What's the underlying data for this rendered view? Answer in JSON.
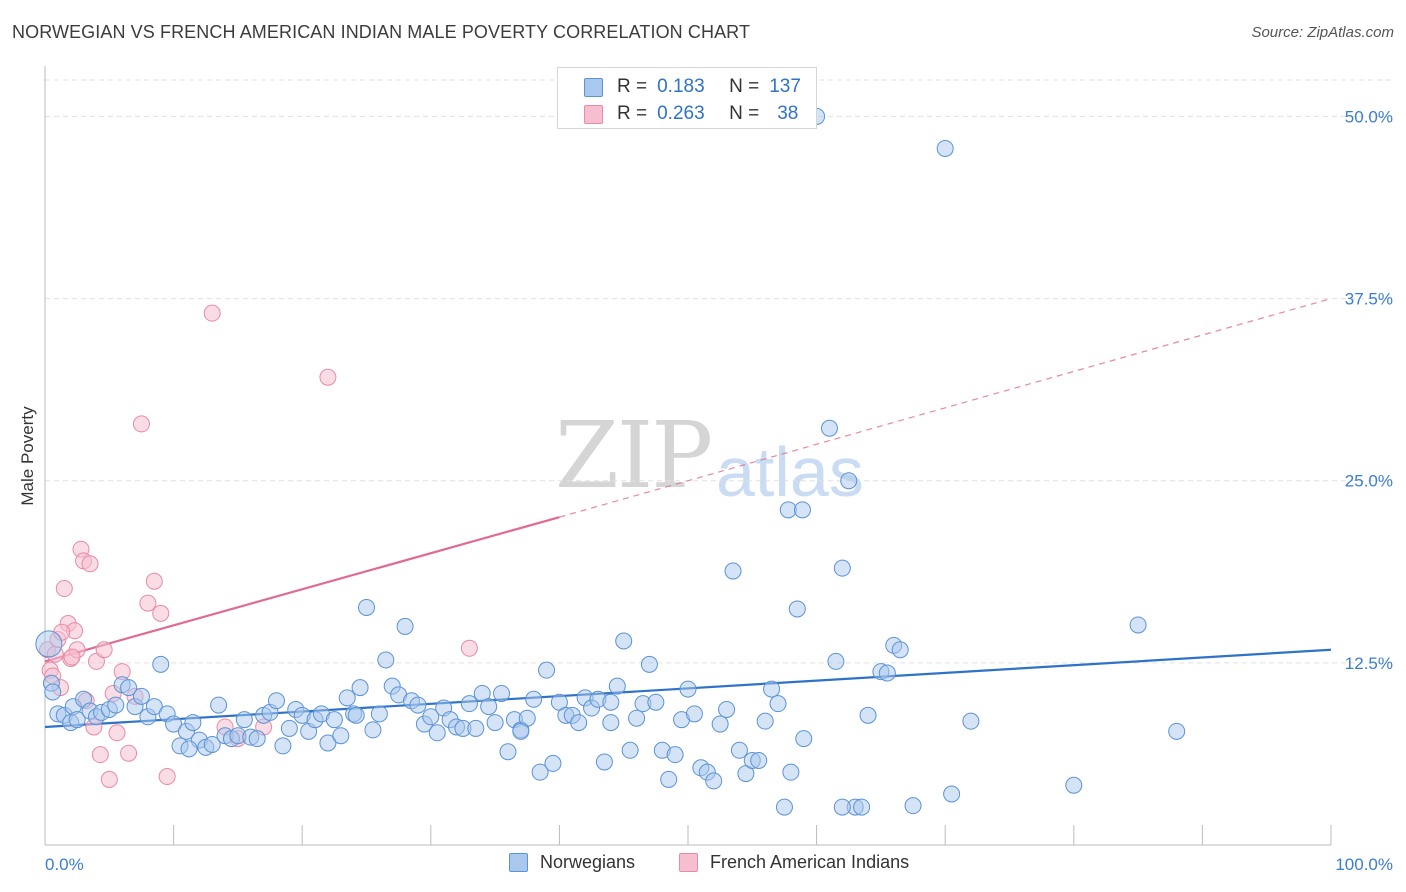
{
  "title": "NORWEGIAN VS FRENCH AMERICAN INDIAN MALE POVERTY CORRELATION CHART",
  "source": "Source: ZipAtlas.com",
  "watermark": {
    "part1": "ZIP",
    "part2": "atlas"
  },
  "legend": {
    "rows": [
      {
        "r_label": "R =",
        "r_value": "0.183",
        "n_label": "N =",
        "n_value": "137"
      },
      {
        "r_label": "R =",
        "r_value": "0.263",
        "n_label": "N =",
        "n_value": "38"
      }
    ]
  },
  "bottom_legend": {
    "series1": "Norwegians",
    "series2": "French American Indians"
  },
  "colors": {
    "blue_fill": "#a9c8ee",
    "blue_stroke": "#5b93d6",
    "blue_line": "#2f73c8",
    "pink_fill": "#f6bfd0",
    "pink_stroke": "#e88aa8",
    "pink_line": "#e06a93",
    "tick_text": "#3b7dd1",
    "grid": "#e0e0e0"
  },
  "chart_data": {
    "type": "scatter",
    "title": "NORWEGIAN VS FRENCH AMERICAN INDIAN MALE POVERTY CORRELATION CHART",
    "xlabel": "",
    "ylabel": "Male Poverty",
    "xlim": [
      0,
      100
    ],
    "ylim": [
      0,
      52.5
    ],
    "x_tick_labels": [
      "0.0%",
      "100.0%"
    ],
    "y_ticks": [
      12.5,
      25.0,
      37.5,
      50.0
    ],
    "y_tick_labels": [
      "12.5%",
      "25.0%",
      "37.5%",
      "50.0%"
    ],
    "grid": true,
    "legend_position": "top-center",
    "series": [
      {
        "name": "Norwegians",
        "color": "#a9c8ee",
        "r": 0.183,
        "n": 137,
        "trend": {
          "x": [
            0,
            100
          ],
          "y": [
            8.1,
            13.4
          ],
          "style": "solid"
        },
        "points": [
          [
            0.3,
            13.8
          ],
          [
            0.5,
            11.1
          ],
          [
            0.6,
            10.5
          ],
          [
            1.0,
            9.0
          ],
          [
            1.5,
            8.9
          ],
          [
            2.0,
            8.4
          ],
          [
            2.2,
            9.5
          ],
          [
            2.5,
            8.6
          ],
          [
            3.0,
            10.0
          ],
          [
            3.5,
            9.2
          ],
          [
            4.0,
            8.8
          ],
          [
            4.4,
            9.1
          ],
          [
            5.0,
            9.3
          ],
          [
            5.5,
            9.6
          ],
          [
            6.0,
            11.0
          ],
          [
            6.5,
            10.8
          ],
          [
            7.0,
            9.5
          ],
          [
            7.5,
            10.2
          ],
          [
            8.0,
            8.8
          ],
          [
            8.5,
            9.5
          ],
          [
            9.0,
            12.4
          ],
          [
            9.5,
            9.0
          ],
          [
            10.0,
            8.3
          ],
          [
            10.5,
            6.8
          ],
          [
            11.0,
            7.8
          ],
          [
            11.5,
            8.4
          ],
          [
            12.0,
            7.2
          ],
          [
            12.5,
            6.7
          ],
          [
            13.0,
            6.9
          ],
          [
            13.5,
            9.6
          ],
          [
            14.0,
            7.5
          ],
          [
            14.5,
            7.3
          ],
          [
            15.0,
            7.5
          ],
          [
            15.5,
            8.6
          ],
          [
            16.0,
            7.4
          ],
          [
            16.5,
            7.3
          ],
          [
            17.0,
            8.9
          ],
          [
            17.5,
            9.1
          ],
          [
            18.0,
            9.9
          ],
          [
            18.5,
            6.8
          ],
          [
            19.0,
            8.0
          ],
          [
            19.5,
            9.3
          ],
          [
            20.0,
            8.9
          ],
          [
            20.5,
            7.8
          ],
          [
            21.0,
            8.6
          ],
          [
            21.5,
            9.0
          ],
          [
            22.0,
            7.0
          ],
          [
            22.5,
            8.6
          ],
          [
            23.0,
            7.5
          ],
          [
            23.5,
            10.1
          ],
          [
            24.0,
            9.0
          ],
          [
            24.5,
            10.8
          ],
          [
            25.0,
            16.3
          ],
          [
            25.5,
            7.9
          ],
          [
            26.0,
            9.0
          ],
          [
            26.5,
            12.7
          ],
          [
            27.0,
            10.9
          ],
          [
            27.5,
            10.3
          ],
          [
            28.0,
            15.0
          ],
          [
            28.5,
            9.9
          ],
          [
            29.0,
            9.6
          ],
          [
            29.5,
            8.3
          ],
          [
            30.0,
            8.8
          ],
          [
            30.5,
            7.7
          ],
          [
            31.0,
            9.4
          ],
          [
            31.5,
            8.6
          ],
          [
            32.0,
            8.1
          ],
          [
            32.5,
            8.0
          ],
          [
            33.0,
            9.7
          ],
          [
            33.5,
            8.0
          ],
          [
            34.0,
            10.4
          ],
          [
            34.5,
            9.5
          ],
          [
            35.0,
            8.4
          ],
          [
            35.5,
            10.4
          ],
          [
            36.0,
            6.4
          ],
          [
            36.5,
            8.6
          ],
          [
            37.0,
            7.9
          ],
          [
            37.5,
            8.7
          ],
          [
            38.0,
            10.0
          ],
          [
            38.5,
            5.0
          ],
          [
            39.0,
            12.0
          ],
          [
            39.5,
            5.6
          ],
          [
            40.0,
            9.8
          ],
          [
            40.5,
            8.9
          ],
          [
            41.0,
            8.9
          ],
          [
            41.5,
            8.4
          ],
          [
            42.0,
            10.1
          ],
          [
            42.5,
            9.4
          ],
          [
            43.0,
            10.0
          ],
          [
            43.5,
            5.7
          ],
          [
            44.0,
            8.4
          ],
          [
            44.5,
            10.9
          ],
          [
            45.0,
            14.0
          ],
          [
            45.5,
            6.5
          ],
          [
            46.0,
            8.7
          ],
          [
            46.5,
            9.7
          ],
          [
            47.0,
            12.4
          ],
          [
            47.5,
            9.8
          ],
          [
            48.0,
            6.5
          ],
          [
            48.5,
            4.5
          ],
          [
            49.0,
            6.2
          ],
          [
            49.5,
            8.6
          ],
          [
            50.0,
            10.7
          ],
          [
            50.5,
            9.0
          ],
          [
            51.0,
            5.3
          ],
          [
            51.5,
            5.0
          ],
          [
            52.0,
            4.4
          ],
          [
            52.5,
            8.3
          ],
          [
            53.0,
            9.3
          ],
          [
            53.5,
            18.8
          ],
          [
            54.0,
            6.5
          ],
          [
            54.5,
            4.9
          ],
          [
            55.0,
            5.8
          ],
          [
            55.5,
            5.8
          ],
          [
            56.0,
            8.5
          ],
          [
            56.5,
            10.7
          ],
          [
            57.0,
            9.7
          ],
          [
            57.5,
            2.6
          ],
          [
            58.0,
            5.0
          ],
          [
            58.5,
            16.2
          ],
          [
            59.0,
            7.3
          ],
          [
            60.0,
            50.0
          ],
          [
            61.0,
            28.6
          ],
          [
            61.5,
            12.6
          ],
          [
            62.0,
            19.0
          ],
          [
            62.5,
            25.0
          ],
          [
            63.0,
            2.6
          ],
          [
            63.5,
            2.6
          ],
          [
            64.0,
            8.9
          ],
          [
            65.0,
            11.9
          ],
          [
            65.5,
            11.8
          ],
          [
            66.0,
            13.7
          ],
          [
            66.5,
            13.4
          ],
          [
            67.5,
            2.7
          ],
          [
            70.0,
            47.8
          ],
          [
            70.5,
            3.5
          ],
          [
            72.0,
            8.5
          ],
          [
            80.0,
            4.1
          ],
          [
            85.0,
            15.1
          ],
          [
            88.0,
            7.8
          ],
          [
            57.8,
            23.0
          ],
          [
            62.0,
            2.6
          ],
          [
            58.9,
            23.0
          ],
          [
            24.2,
            8.9
          ],
          [
            37.0,
            7.8
          ],
          [
            11.2,
            6.6
          ],
          [
            44.0,
            9.8
          ]
        ]
      },
      {
        "name": "French American Indians",
        "color": "#f6bfd0",
        "r": 0.263,
        "n": 38,
        "trend": {
          "x": [
            0,
            40
          ],
          "y": [
            12.6,
            22.5
          ],
          "style": "solid",
          "extended": {
            "x": [
              40,
              100
            ],
            "y": [
              22.5,
              37.5
            ],
            "style": "dashed"
          }
        },
        "points": [
          [
            0.2,
            13.4
          ],
          [
            0.4,
            12.0
          ],
          [
            0.6,
            11.6
          ],
          [
            0.8,
            13.1
          ],
          [
            1.0,
            14.1
          ],
          [
            1.2,
            10.8
          ],
          [
            1.5,
            17.6
          ],
          [
            1.8,
            15.2
          ],
          [
            2.0,
            12.8
          ],
          [
            2.3,
            14.7
          ],
          [
            2.5,
            13.4
          ],
          [
            2.8,
            20.3
          ],
          [
            3.0,
            19.5
          ],
          [
            3.2,
            9.9
          ],
          [
            3.5,
            19.3
          ],
          [
            3.8,
            8.1
          ],
          [
            4.0,
            12.6
          ],
          [
            4.3,
            6.2
          ],
          [
            4.6,
            13.4
          ],
          [
            5.0,
            4.5
          ],
          [
            5.3,
            10.4
          ],
          [
            5.6,
            7.7
          ],
          [
            6.0,
            11.9
          ],
          [
            6.5,
            6.3
          ],
          [
            7.0,
            10.2
          ],
          [
            7.5,
            28.9
          ],
          [
            8.0,
            16.6
          ],
          [
            8.5,
            18.1
          ],
          [
            9.0,
            15.9
          ],
          [
            9.5,
            4.7
          ],
          [
            13.0,
            36.5
          ],
          [
            14.0,
            8.1
          ],
          [
            15.0,
            7.3
          ],
          [
            17.0,
            8.1
          ],
          [
            22.0,
            32.1
          ],
          [
            33.0,
            13.5
          ],
          [
            1.3,
            14.6
          ],
          [
            2.1,
            12.9
          ]
        ]
      }
    ]
  }
}
